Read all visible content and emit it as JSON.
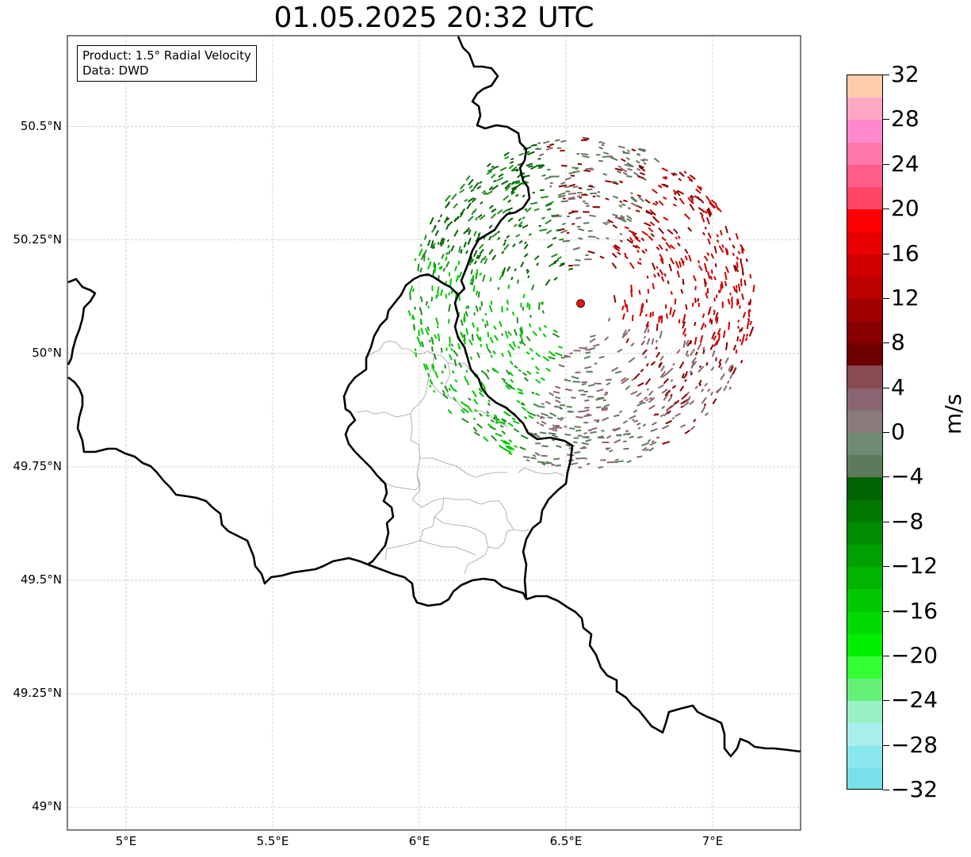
{
  "title": "01.05.2025 20:32 UTC",
  "info": {
    "product": "Product: 1.5° Radial Velocity",
    "source": "Data: DWD"
  },
  "map": {
    "extent": {
      "lon_min": 4.8,
      "lon_max": 7.3,
      "lat_min": 48.95,
      "lat_max": 50.7
    },
    "lat_ticks": [
      {
        "value": 50.5,
        "label": "50.5°N"
      },
      {
        "value": 50.25,
        "label": "50.25°N"
      },
      {
        "value": 50.0,
        "label": "50°N"
      },
      {
        "value": 49.75,
        "label": "49.75°N"
      },
      {
        "value": 49.5,
        "label": "49.5°N"
      },
      {
        "value": 49.25,
        "label": "49.25°N"
      },
      {
        "value": 49.0,
        "label": "49°N"
      }
    ],
    "lon_ticks": [
      {
        "value": 5.0,
        "label": "5°E"
      },
      {
        "value": 5.5,
        "label": "5.5°E"
      },
      {
        "value": 6.0,
        "label": "6°E"
      },
      {
        "value": 6.5,
        "label": "6.5°E"
      },
      {
        "value": 7.0,
        "label": "7°E"
      }
    ],
    "radar_site": {
      "lon": 6.55,
      "lat": 50.11,
      "color": "#ee1111"
    },
    "border_color": "#000000",
    "subdivision_color": "#a0a0a0",
    "grid": true
  },
  "colorbar": {
    "unit": "m/s",
    "min": -32,
    "max": 32,
    "ticks": [
      {
        "value": 32,
        "label": "32"
      },
      {
        "value": 28,
        "label": "28"
      },
      {
        "value": 24,
        "label": "24"
      },
      {
        "value": 20,
        "label": "20"
      },
      {
        "value": 16,
        "label": "16"
      },
      {
        "value": 12,
        "label": "12"
      },
      {
        "value": 8,
        "label": "8"
      },
      {
        "value": 4,
        "label": "4"
      },
      {
        "value": 0,
        "label": "0"
      },
      {
        "value": -4,
        "label": "−4"
      },
      {
        "value": -8,
        "label": "−8"
      },
      {
        "value": -12,
        "label": "−12"
      },
      {
        "value": -16,
        "label": "−16"
      },
      {
        "value": -20,
        "label": "−20"
      },
      {
        "value": -24,
        "label": "−24"
      },
      {
        "value": -28,
        "label": "−28"
      },
      {
        "value": -32,
        "label": "−32"
      }
    ],
    "colors_top_to_bottom": [
      "#ffccaa",
      "#ffa8c4",
      "#ff88cc",
      "#ff77aa",
      "#ff5c8a",
      "#ff4466",
      "#ff0000",
      "#e80000",
      "#d00000",
      "#bb0000",
      "#a00000",
      "#880000",
      "#6e0000",
      "#8a4a52",
      "#8a6570",
      "#8a7a7a",
      "#6e8a70",
      "#5e7a5c",
      "#006400",
      "#007800",
      "#008c00",
      "#00a000",
      "#00b400",
      "#00c800",
      "#00dc00",
      "#00f000",
      "#33ff33",
      "#66f077",
      "#99f0c4",
      "#aaeeee",
      "#88e8ee",
      "#77e0e8"
    ]
  },
  "velocity_colors": {
    "strong_receding": "#cc0000",
    "dark_receding": "#8b0000",
    "near_zero_pos": "#8a6570",
    "near_zero_neg": "#5e7a5c",
    "approach_dark": "#006400",
    "approach_mid": "#228b22",
    "approach_bright": "#00c800"
  }
}
